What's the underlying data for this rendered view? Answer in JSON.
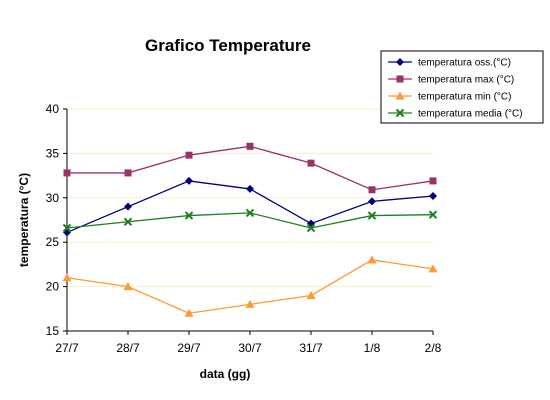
{
  "chart_data": {
    "type": "line",
    "title": "Grafico Temperature",
    "xlabel": "data (gg)",
    "ylabel": "temperatura  (°C)",
    "categories": [
      "27/7",
      "28/7",
      "29/7",
      "30/7",
      "31/7",
      "1/8",
      "2/8"
    ],
    "ylim": [
      15,
      40
    ],
    "yticks": [
      "15",
      "20",
      "25",
      "30",
      "35",
      "40"
    ],
    "grid": "horizontal, light yellow",
    "legend_position": "top-right",
    "series": [
      {
        "name": "temperatura oss.(°C)",
        "values": [
          26.1,
          29.0,
          31.9,
          31.0,
          27.1,
          29.6,
          30.2
        ],
        "color": "#000080",
        "marker": "diamond"
      },
      {
        "name": "temperatura max (°C)",
        "values": [
          32.8,
          32.8,
          34.8,
          35.8,
          33.9,
          30.9,
          31.9
        ],
        "color": "#993366",
        "marker": "square"
      },
      {
        "name": "temperatura min (°C)",
        "values": [
          21.0,
          20.0,
          17.0,
          18.0,
          19.0,
          23.0,
          22.0
        ],
        "color": "#FF9933",
        "marker": "triangle"
      },
      {
        "name": "temperatura media (°C)",
        "values": [
          26.6,
          27.3,
          28.0,
          28.3,
          26.6,
          28.0,
          28.1
        ],
        "color": "#1F7F1F",
        "marker": "x"
      }
    ]
  }
}
